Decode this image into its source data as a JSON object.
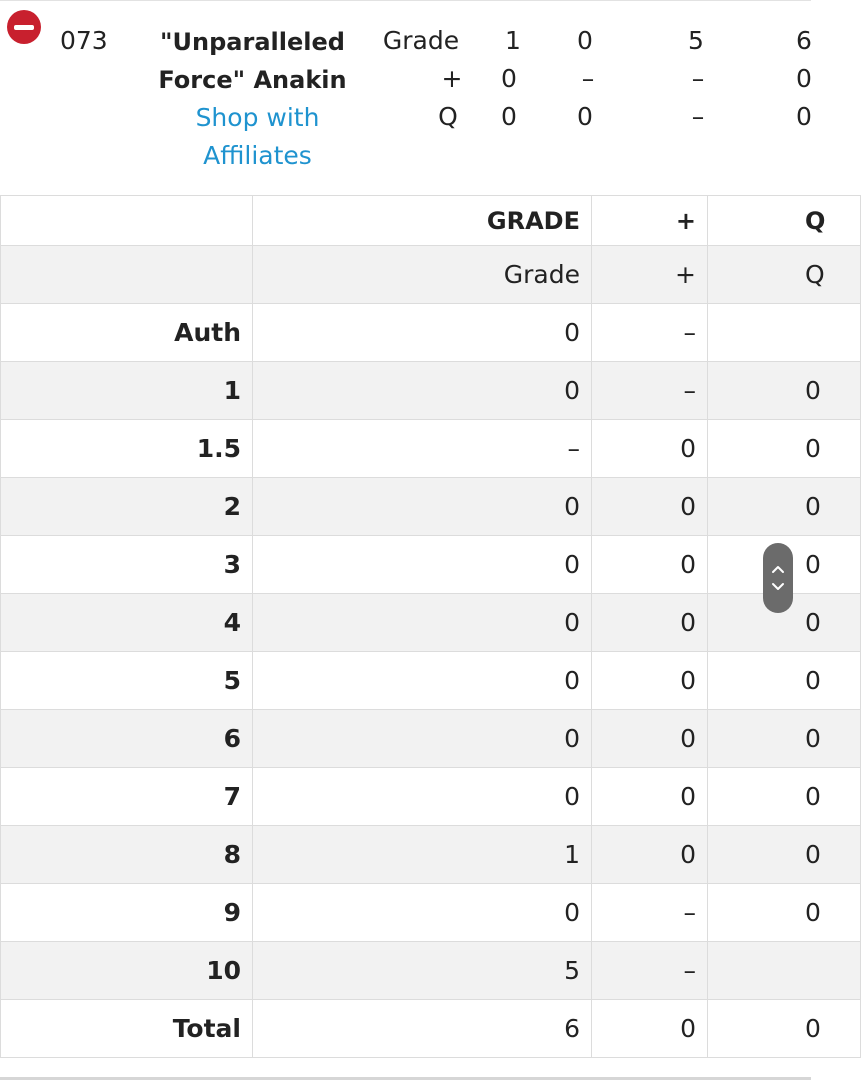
{
  "summary": {
    "card_number": "073",
    "card_name_line1": "\"Unparalleled",
    "card_name_line2": "Force\" Anakin",
    "shop_link_line1": "Shop with",
    "shop_link_line2": "Affiliates",
    "mini_col_labels": [
      "Grade",
      "+",
      "Q"
    ],
    "mini_col_a": [
      "1",
      "0",
      "0"
    ],
    "mini_col_b": [
      "0",
      "–",
      "0"
    ],
    "mini_col_c": [
      "5",
      "–",
      "–"
    ],
    "mini_col_d": [
      "6",
      "0",
      "0"
    ]
  },
  "table": {
    "header": [
      "",
      "GRADE",
      "+",
      "Q"
    ],
    "subheader": [
      "",
      "Grade",
      "+",
      "Q"
    ],
    "rows": [
      {
        "label": "Auth",
        "grade": "0",
        "plus": "–",
        "q": ""
      },
      {
        "label": "1",
        "grade": "0",
        "plus": "–",
        "q": "0"
      },
      {
        "label": "1.5",
        "grade": "–",
        "plus": "0",
        "q": "0"
      },
      {
        "label": "2",
        "grade": "0",
        "plus": "0",
        "q": "0"
      },
      {
        "label": "3",
        "grade": "0",
        "plus": "0",
        "q": "0"
      },
      {
        "label": "4",
        "grade": "0",
        "plus": "0",
        "q": "0"
      },
      {
        "label": "5",
        "grade": "0",
        "plus": "0",
        "q": "0"
      },
      {
        "label": "6",
        "grade": "0",
        "plus": "0",
        "q": "0"
      },
      {
        "label": "7",
        "grade": "0",
        "plus": "0",
        "q": "0"
      },
      {
        "label": "8",
        "grade": "1",
        "plus": "0",
        "q": "0"
      },
      {
        "label": "9",
        "grade": "0",
        "plus": "–",
        "q": "0"
      },
      {
        "label": "10",
        "grade": "5",
        "plus": "–",
        "q": ""
      },
      {
        "label": "Total",
        "grade": "6",
        "plus": "0",
        "q": "0"
      }
    ]
  },
  "colors": {
    "remove_red": "#c8202e",
    "link_blue": "#1f93cf",
    "row_shade": "#f2f2f2"
  },
  "icons": {
    "remove": "minus-circle-icon",
    "scroll_up": "chevron-up-icon",
    "scroll_down": "chevron-down-icon"
  }
}
